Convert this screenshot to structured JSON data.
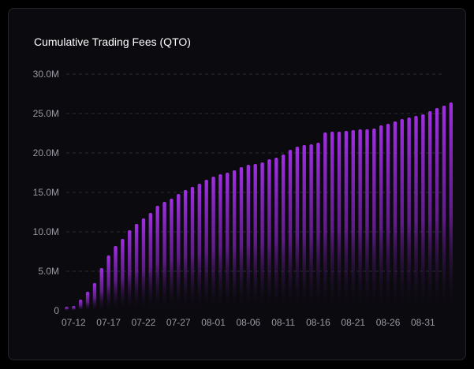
{
  "chart_data": {
    "type": "bar",
    "title": "Cumulative Trading Fees (QTO)",
    "xlabel": "",
    "ylabel": "",
    "ylim": [
      0,
      30000000
    ],
    "yticks": [
      0,
      5000000,
      10000000,
      15000000,
      20000000,
      25000000,
      30000000
    ],
    "ytick_labels": [
      "0",
      "5.0M",
      "10.0M",
      "15.0M",
      "20.0M",
      "25.0M",
      "30.0M"
    ],
    "xtick_labels": [
      "07-12",
      "07-17",
      "07-22",
      "07-27",
      "08-01",
      "08-06",
      "08-11",
      "08-16",
      "08-21",
      "08-26",
      "08-31"
    ],
    "grid": true,
    "categories": [
      "07-11",
      "07-12",
      "07-13",
      "07-14",
      "07-15",
      "07-16",
      "07-17",
      "07-18",
      "07-19",
      "07-20",
      "07-21",
      "07-22",
      "07-23",
      "07-24",
      "07-25",
      "07-26",
      "07-27",
      "07-28",
      "07-29",
      "07-30",
      "07-31",
      "08-01",
      "08-02",
      "08-03",
      "08-04",
      "08-05",
      "08-06",
      "08-07",
      "08-08",
      "08-09",
      "08-10",
      "08-11",
      "08-12",
      "08-13",
      "08-14",
      "08-15",
      "08-16",
      "08-17",
      "08-18",
      "08-19",
      "08-20",
      "08-21",
      "08-22",
      "08-23",
      "08-24",
      "08-25",
      "08-26",
      "08-27",
      "08-28",
      "08-29",
      "08-30",
      "08-31",
      "09-01",
      "09-02",
      "09-03",
      "09-04"
    ],
    "series": [
      {
        "name": "Cumulative Trading Fees",
        "values": [
          500000,
          600000,
          1400000,
          2400000,
          3500000,
          5400000,
          7000000,
          8200000,
          9100000,
          10200000,
          11000000,
          11700000,
          12400000,
          13300000,
          13800000,
          14200000,
          14800000,
          15300000,
          15700000,
          16100000,
          16600000,
          17000000,
          17300000,
          17500000,
          17800000,
          18200000,
          18500000,
          18600000,
          18800000,
          19200000,
          19400000,
          19800000,
          20400000,
          20800000,
          21000000,
          21100000,
          21300000,
          22600000,
          22700000,
          22700000,
          22800000,
          22900000,
          23000000,
          23000000,
          23100000,
          23500000,
          23700000,
          24000000,
          24300000,
          24500000,
          24700000,
          24900000,
          25300000,
          25700000,
          26000000,
          26400000
        ]
      }
    ],
    "colors": {
      "bar_top": "#a02fe3",
      "bar_bottom": "#0b0a0f",
      "grid": "#2a2a33",
      "tick": "#9a99a3"
    }
  }
}
